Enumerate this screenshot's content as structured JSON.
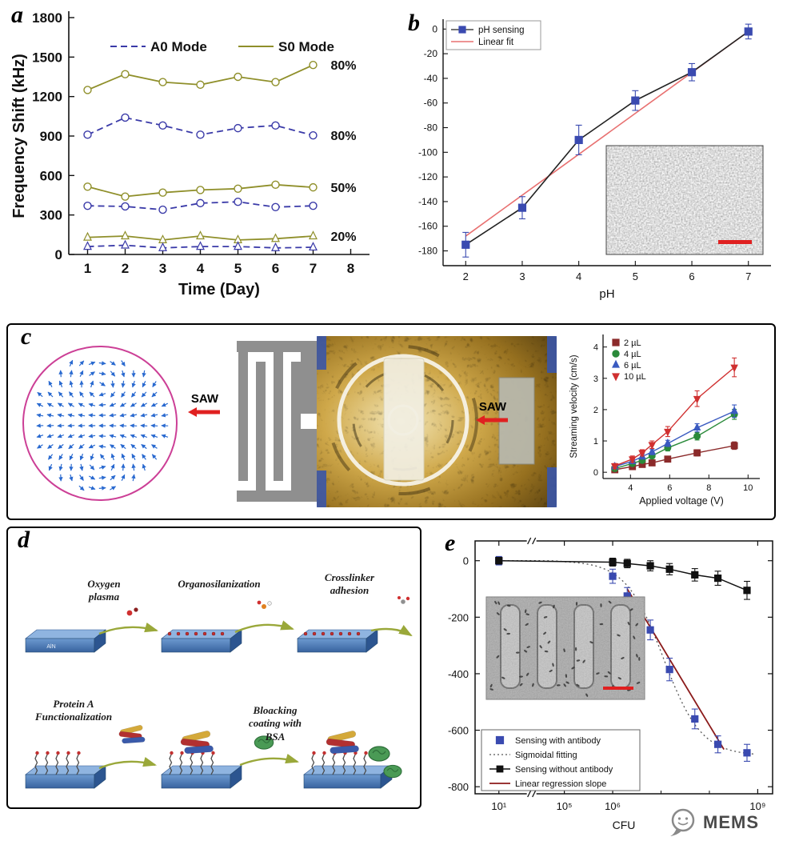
{
  "figure": {
    "panel_labels": {
      "a": "a",
      "b": "b",
      "c": "c",
      "d": "d",
      "e": "e"
    },
    "colors": {
      "olive": "#8f8f2a",
      "blue": "#3a3aa8",
      "scatter_blue": "#3a4ab0",
      "fit_red": "#e87070",
      "regression_red": "#8b1a1a",
      "arrow_red": "#e02020",
      "swirl_blue": "#2a6ad0",
      "idt_gray": "#8f8f8f",
      "olive_arrow": "#9aa83a",
      "slab_blue": "#4a7ab8",
      "ring_pink": "#cc3f96"
    },
    "c": {
      "saw1": "SAW",
      "saw2": "SAW"
    },
    "d": {
      "steps": [
        "Oxygen plasma",
        "Organosilanization",
        "Crosslinker adhesion",
        "Protein A Functionalization",
        "Bloacking coating with BSA"
      ],
      "slab_text": "AlN"
    },
    "logo": {
      "text": "MEMS"
    }
  },
  "chart_data": [
    {
      "id": "a",
      "type": "line",
      "title": "",
      "xlabel": "Time (Day)",
      "ylabel": "Frequency Shift (kHz)",
      "xlim": [
        0.5,
        8.5
      ],
      "ylim": [
        0,
        1800
      ],
      "xticks": [
        1,
        2,
        3,
        4,
        5,
        6,
        7,
        8
      ],
      "yticks": [
        0,
        300,
        600,
        900,
        1200,
        1500,
        1800
      ],
      "x": [
        1,
        2,
        3,
        4,
        5,
        6,
        7
      ],
      "legend": [
        {
          "label": "A0 Mode",
          "color": "#3a3aa8",
          "dash": true
        },
        {
          "label": "S0 Mode",
          "color": "#8f8f2a",
          "dash": false
        }
      ],
      "series": [
        {
          "name": "S0 Mode 80%",
          "color": "#8f8f2a",
          "dash": false,
          "marker": "circle",
          "annotation": "80%",
          "values": [
            1250,
            1370,
            1310,
            1290,
            1350,
            1310,
            1440
          ]
        },
        {
          "name": "A0 Mode 80%",
          "color": "#3a3aa8",
          "dash": true,
          "marker": "circle",
          "annotation": "80%",
          "values": [
            910,
            1040,
            980,
            910,
            960,
            980,
            905
          ]
        },
        {
          "name": "S0 Mode 50%",
          "color": "#8f8f2a",
          "dash": false,
          "marker": "circle",
          "annotation": "50%",
          "values": [
            515,
            440,
            470,
            490,
            500,
            530,
            510
          ]
        },
        {
          "name": "A0 Mode 50%",
          "color": "#3a3aa8",
          "dash": true,
          "marker": "circle",
          "values": [
            370,
            365,
            340,
            390,
            400,
            360,
            370
          ]
        },
        {
          "name": "S0 Mode 20%",
          "color": "#8f8f2a",
          "dash": false,
          "marker": "triangle",
          "annotation": "20%",
          "values": [
            130,
            140,
            110,
            140,
            110,
            120,
            140
          ]
        },
        {
          "name": "A0 Mode 20%",
          "color": "#3a3aa8",
          "dash": true,
          "marker": "triangle",
          "values": [
            60,
            70,
            50,
            60,
            60,
            50,
            55
          ]
        }
      ]
    },
    {
      "id": "b",
      "type": "scatter",
      "xlabel": "pH",
      "ylabel": "",
      "xlim": [
        1.6,
        7.4
      ],
      "ylim": [
        -192,
        8
      ],
      "xticks": [
        2,
        3,
        4,
        5,
        6,
        7
      ],
      "yticks": [
        0,
        -20,
        -40,
        -60,
        -80,
        -100,
        -120,
        -140,
        -160,
        -180
      ],
      "legend": [
        {
          "label": "pH sensing",
          "color": "#3a4ab0",
          "type": "square-line"
        },
        {
          "label": "Linear fit",
          "color": "#e87070",
          "type": "line"
        }
      ],
      "x": [
        2,
        3,
        4,
        5,
        6,
        7
      ],
      "values": [
        -175,
        -145,
        -90,
        -58,
        -35,
        -2
      ],
      "errors": [
        10,
        9,
        12,
        8,
        7,
        6
      ],
      "fit": {
        "from": [
          2,
          -168
        ],
        "to": [
          7,
          -2
        ],
        "color": "#e87070"
      },
      "point_color": "#3a4ab0",
      "line_color": "#222222",
      "inset": "SEM micrograph with red scale bar"
    },
    {
      "id": "c",
      "type": "line",
      "xlabel": "Applied voltage (V)",
      "ylabel": "Streaming velocity (cm/s)",
      "xlim": [
        2.6,
        10.6
      ],
      "ylim": [
        -0.2,
        4.4
      ],
      "xticks": [
        4,
        6,
        8,
        10
      ],
      "yticks": [
        0,
        1,
        2,
        3,
        4
      ],
      "x": [
        3.2,
        4.1,
        4.6,
        5.1,
        5.9,
        7.4,
        9.3
      ],
      "series": [
        {
          "name": "2 µL",
          "color": "#8b2a2a",
          "marker": "square",
          "values": [
            0.08,
            0.18,
            0.25,
            0.3,
            0.42,
            0.62,
            0.85
          ],
          "errors": [
            0.05,
            0.05,
            0.06,
            0.06,
            0.07,
            0.1,
            0.12
          ]
        },
        {
          "name": "4 µL",
          "color": "#2a8a3a",
          "marker": "circle",
          "values": [
            0.12,
            0.28,
            0.38,
            0.52,
            0.78,
            1.15,
            1.85
          ],
          "errors": [
            0.05,
            0.06,
            0.07,
            0.08,
            0.1,
            0.12,
            0.16
          ]
        },
        {
          "name": "6 µL",
          "color": "#3a5ac0",
          "marker": "triangle",
          "values": [
            0.18,
            0.35,
            0.5,
            0.65,
            0.92,
            1.42,
            1.95
          ],
          "errors": [
            0.06,
            0.07,
            0.08,
            0.09,
            0.1,
            0.13,
            0.2
          ]
        },
        {
          "name": "10 µL",
          "color": "#d03030",
          "marker": "triangle-down",
          "values": [
            0.2,
            0.42,
            0.62,
            0.88,
            1.3,
            2.35,
            3.35
          ],
          "errors": [
            0.08,
            0.1,
            0.1,
            0.12,
            0.16,
            0.25,
            0.3
          ]
        }
      ]
    },
    {
      "id": "e",
      "type": "scatter-logx",
      "xlabel": "CFU",
      "ylabel": "",
      "ylim": [
        -825,
        70
      ],
      "yticks": [
        0,
        -200,
        -400,
        -600,
        -800
      ],
      "xticks": [
        {
          "v": 10,
          "label": "10¹"
        },
        {
          "v": 100000,
          "label": "10⁵"
        },
        {
          "v": 1000000,
          "label": "10⁶"
        },
        {
          "v": 1000000000,
          "label": "10⁹"
        }
      ],
      "minor_xticks": [
        10000000,
        100000000
      ],
      "sigmoid": {
        "amplitude": -690,
        "center": 7.05,
        "width": 0.9
      },
      "regression": {
        "from": [
          2000000,
          -100
        ],
        "to": [
          200000000,
          -668
        ],
        "color": "#8b1a1a"
      },
      "series": [
        {
          "name": "Sensing with antibody",
          "color": "#3a4ab0",
          "marker": "square",
          "points": [
            [
              10,
              0
            ],
            [
              1000000,
              -55
            ],
            [
              2000000,
              -125
            ],
            [
              6000000,
              -245
            ],
            [
              15000000,
              -385
            ],
            [
              50000000,
              -560
            ],
            [
              150000000,
              -650
            ],
            [
              600000000,
              -680
            ]
          ],
          "errors": [
            15,
            25,
            30,
            35,
            40,
            35,
            30,
            30
          ]
        },
        {
          "name": "Sensing without antibody",
          "color": "#111111",
          "marker": "square",
          "line": true,
          "points": [
            [
              10,
              0
            ],
            [
              1000000,
              -5
            ],
            [
              2000000,
              -10
            ],
            [
              6000000,
              -18
            ],
            [
              15000000,
              -30
            ],
            [
              50000000,
              -50
            ],
            [
              150000000,
              -62
            ],
            [
              600000000,
              -105
            ]
          ],
          "errors": [
            12,
            14,
            15,
            18,
            20,
            22,
            25,
            32
          ]
        }
      ],
      "legend": [
        {
          "label": "Sensing with antibody",
          "type": "square",
          "color": "#3a4ab0"
        },
        {
          "label": "Sigmoidal fitting",
          "type": "dotted",
          "color": "#555555"
        },
        {
          "label": "Sensing without antibody",
          "type": "square-line",
          "color": "#111111"
        },
        {
          "label": "Linear regression slope",
          "type": "line",
          "color": "#8b1a1a"
        }
      ],
      "inset": "SEM of IDT fingers with bacteria, red scale bar"
    }
  ]
}
